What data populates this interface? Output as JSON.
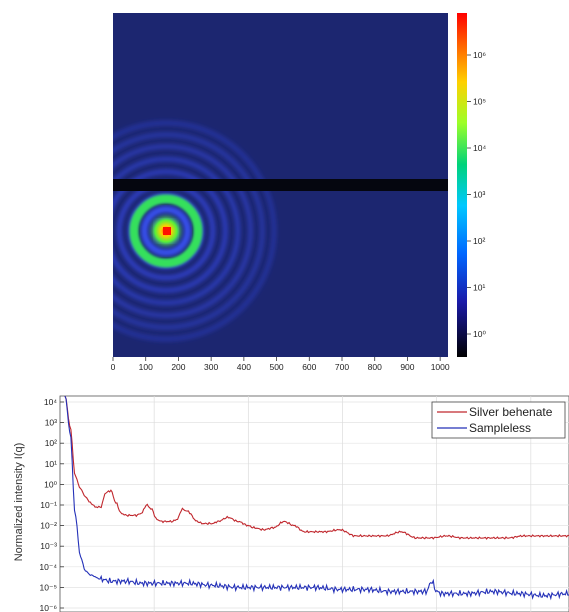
{
  "chart_data": [
    {
      "type": "heatmap",
      "title": "",
      "xlabel": "",
      "ylabel": "",
      "x_ticks": [
        "0",
        "100",
        "200",
        "300",
        "400",
        "500",
        "600",
        "700",
        "800",
        "900",
        "1000"
      ],
      "x_tick_values": [
        0,
        100,
        200,
        300,
        400,
        500,
        600,
        700,
        800,
        900,
        1000
      ],
      "xlim": [
        0,
        1024
      ],
      "beam_center_x": 170,
      "ring_radii": [
        30,
        60,
        95,
        130,
        165,
        200,
        235,
        268,
        300
      ],
      "beamstop": "horizontal dark band",
      "colorbar": {
        "scale": "log",
        "ticks": [
          "10⁶",
          "10⁵",
          "10⁴",
          "10³",
          "10²",
          "10¹",
          "10⁰"
        ],
        "colors": [
          "#ff0000",
          "#ffa500",
          "#ffff00",
          "#7fff00",
          "#00d37a",
          "#00c8ff",
          "#0055ff",
          "#1a1aa8",
          "#000000"
        ]
      }
    },
    {
      "type": "line",
      "title": "",
      "xlabel": "",
      "ylabel": "Normalized intensity I(q)",
      "yscale": "log",
      "ylim_exp": [
        -6,
        4.5
      ],
      "y_ticks": [
        "10⁴",
        "10³",
        "10²",
        "10¹",
        "10⁰",
        "10⁻¹",
        "10⁻²",
        "10⁻³",
        "10⁻⁴",
        "10⁻⁵",
        "10⁻⁶"
      ],
      "grid": true,
      "legend_position": "top-right",
      "series": [
        {
          "name": "Silver behenate",
          "color": "#c0272d",
          "x": [
            0.0,
            0.01,
            0.02,
            0.03,
            0.04,
            0.05,
            0.06,
            0.07,
            0.08,
            0.09,
            0.1,
            0.11,
            0.12,
            0.13,
            0.14,
            0.15,
            0.16,
            0.17,
            0.18,
            0.19,
            0.2,
            0.21,
            0.22,
            0.23,
            0.24,
            0.25,
            0.27,
            0.28,
            0.29,
            0.3,
            0.31,
            0.33,
            0.35,
            0.37,
            0.38,
            0.4,
            0.42,
            0.44,
            0.46,
            0.48,
            0.5,
            0.52,
            0.55,
            0.58,
            0.61,
            0.64,
            0.67,
            0.7,
            0.73,
            0.76,
            0.79,
            0.82,
            0.85,
            0.88,
            0.91,
            0.94,
            0.97,
            1.0
          ],
          "log_y": [
            4.6,
            4.3,
            2.8,
            0.4,
            -0.2,
            -0.6,
            -0.9,
            -1.1,
            -1.1,
            -0.4,
            -0.3,
            -0.9,
            -1.4,
            -1.5,
            -1.5,
            -1.5,
            -1.4,
            -1.0,
            -1.2,
            -1.7,
            -1.8,
            -1.8,
            -1.8,
            -1.7,
            -1.2,
            -1.3,
            -1.8,
            -1.9,
            -1.9,
            -1.9,
            -1.8,
            -1.6,
            -1.8,
            -2.0,
            -2.1,
            -2.2,
            -2.1,
            -1.8,
            -2.0,
            -2.3,
            -2.3,
            -2.3,
            -2.2,
            -2.5,
            -2.5,
            -2.5,
            -2.3,
            -2.6,
            -2.6,
            -2.5,
            -2.6,
            -2.6,
            -2.6,
            -2.6,
            -2.5,
            -2.5,
            -2.5,
            -2.5
          ]
        },
        {
          "name": "Sampleless",
          "color": "#2431b8",
          "x": [
            0.0,
            0.01,
            0.02,
            0.03,
            0.04,
            0.05,
            0.06,
            0.08,
            0.1,
            0.13,
            0.16,
            0.2,
            0.25,
            0.3,
            0.35,
            0.4,
            0.45,
            0.5,
            0.55,
            0.6,
            0.65,
            0.7,
            0.72,
            0.73,
            0.74,
            0.75,
            0.8,
            0.85,
            0.9,
            0.95,
            1.0
          ],
          "log_y": [
            4.7,
            4.3,
            2.5,
            -1.5,
            -3.5,
            -4.2,
            -4.4,
            -4.6,
            -4.7,
            -4.7,
            -4.8,
            -4.8,
            -4.8,
            -4.9,
            -5.0,
            -5.0,
            -5.0,
            -5.0,
            -5.1,
            -5.1,
            -5.2,
            -5.2,
            -5.2,
            -4.7,
            -5.2,
            -5.3,
            -5.3,
            -5.2,
            -5.3,
            -5.4,
            -5.3
          ]
        }
      ]
    }
  ]
}
